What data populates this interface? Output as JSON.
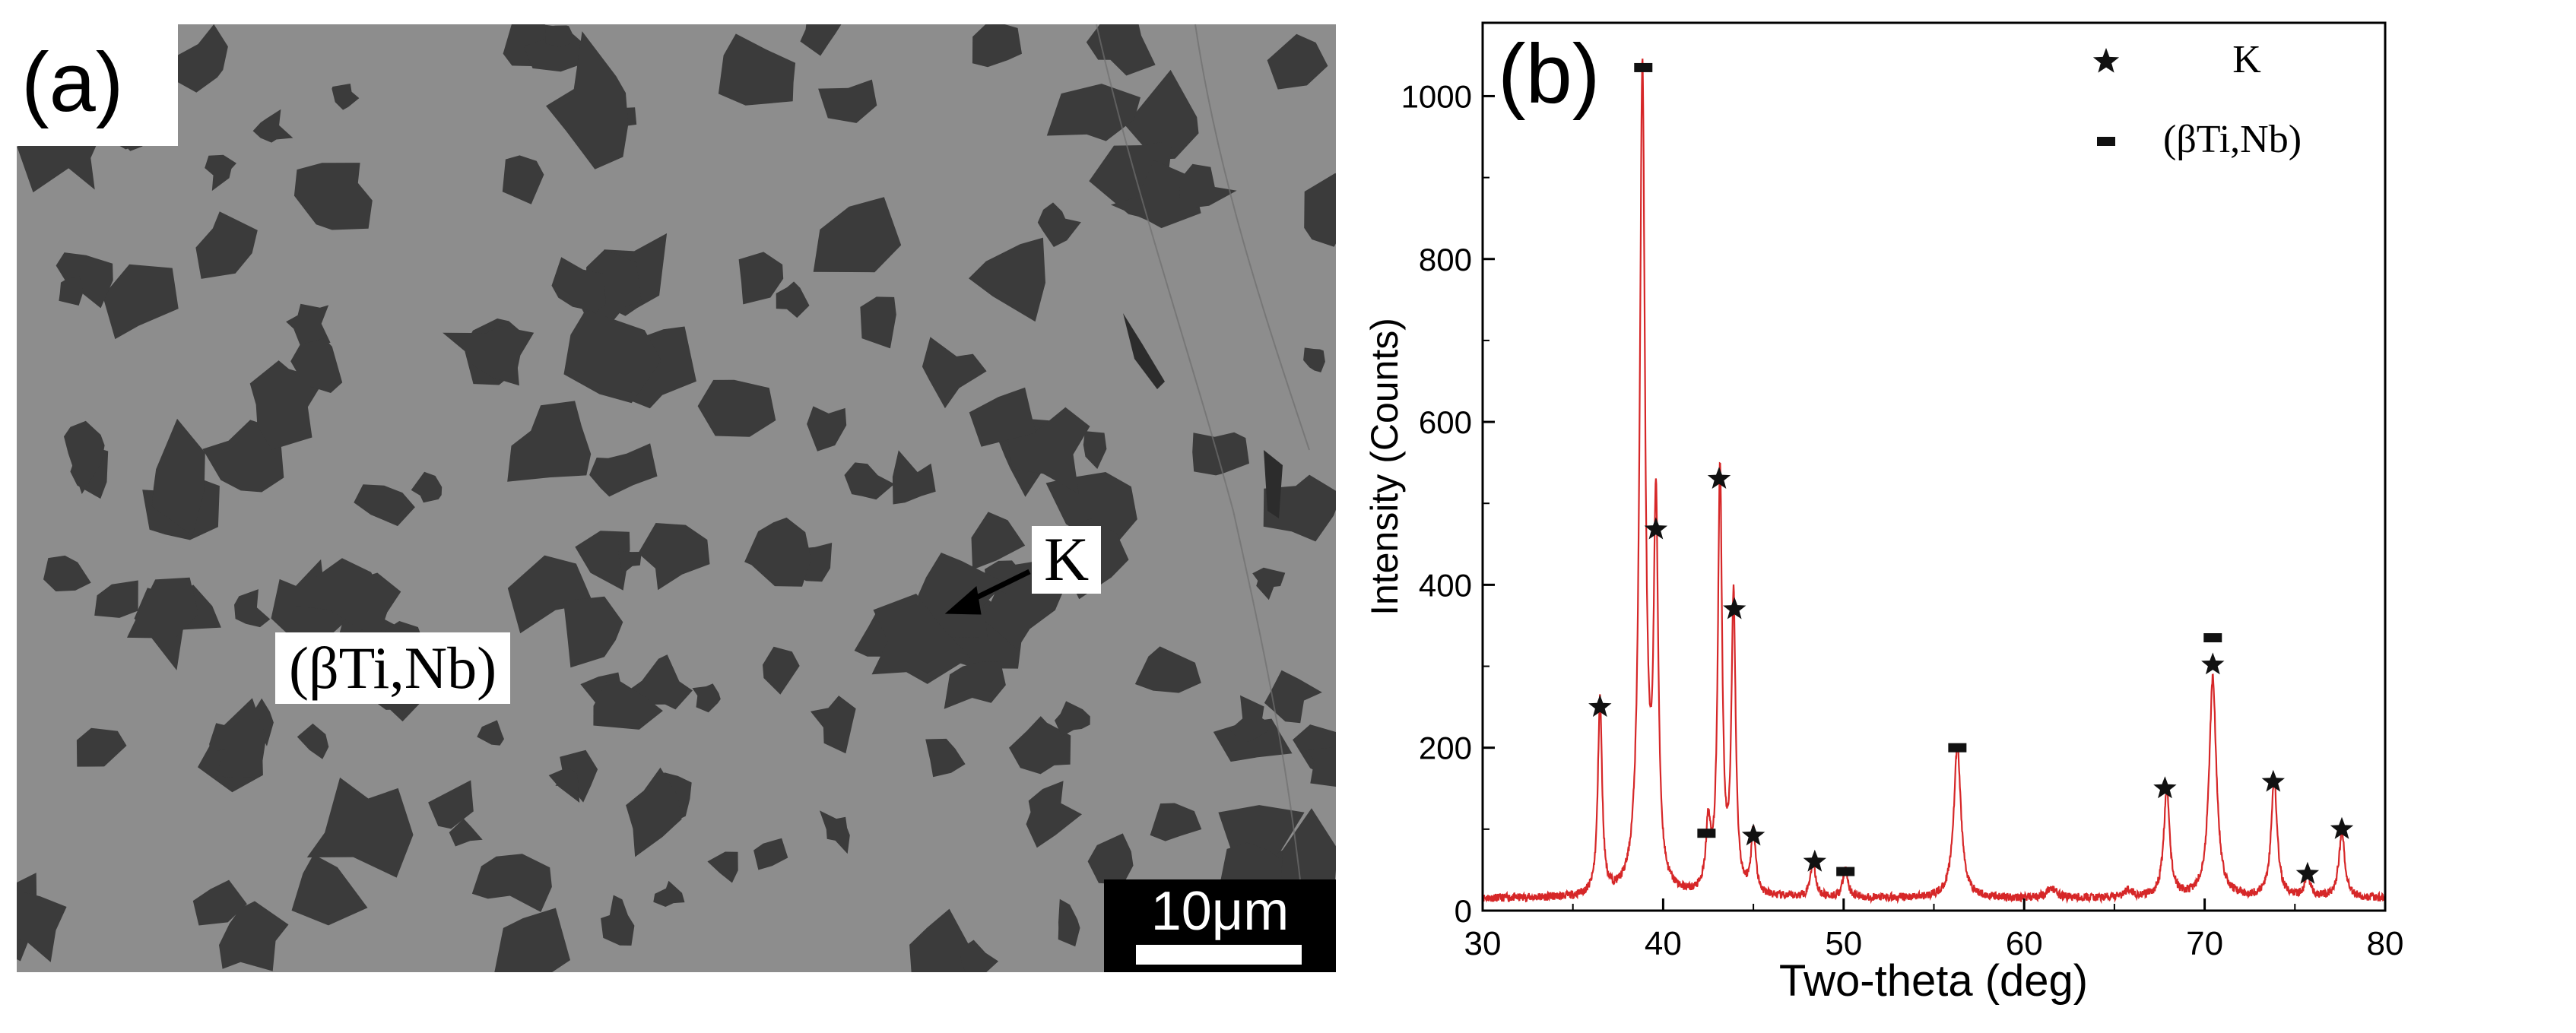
{
  "panel_a": {
    "label": "(a)",
    "phase_label": "(βTi,Nb)",
    "particle_label": "K",
    "scale_label": "10μm"
  },
  "chart_data": {
    "type": "line",
    "panel_label": "(b)",
    "title": "",
    "xlabel": "Two-theta (deg)",
    "ylabel": "Intensity (Counts)",
    "xlim": [
      30,
      80
    ],
    "ylim": [
      0,
      1090
    ],
    "xticks": [
      30,
      40,
      50,
      60,
      70,
      80
    ],
    "yticks": [
      0,
      200,
      400,
      600,
      800,
      1000
    ],
    "grid": false,
    "legend_position": "top-right",
    "line_color": "#d62728",
    "baseline": 15,
    "peaks": [
      {
        "x": 36.5,
        "y": 240,
        "w": 0.14,
        "phase": "K"
      },
      {
        "x": 38.85,
        "y": 1010,
        "w": 0.18,
        "phase": "(βTi,Nb)"
      },
      {
        "x": 39.6,
        "y": 460,
        "w": 0.15,
        "phase": "K"
      },
      {
        "x": 42.5,
        "y": 80,
        "w": 0.15,
        "phase": "(βTi,Nb)"
      },
      {
        "x": 43.15,
        "y": 520,
        "w": 0.14,
        "phase": "K"
      },
      {
        "x": 43.9,
        "y": 360,
        "w": 0.14,
        "phase": "K"
      },
      {
        "x": 45.0,
        "y": 80,
        "w": 0.15,
        "phase": "K"
      },
      {
        "x": 48.3,
        "y": 45,
        "w": 0.17,
        "phase": "K"
      },
      {
        "x": 50.1,
        "y": 35,
        "w": 0.17,
        "phase": "(βTi,Nb)"
      },
      {
        "x": 56.3,
        "y": 185,
        "w": 0.24,
        "phase": "(βTi,Nb)"
      },
      {
        "x": 61.5,
        "y": 12,
        "w": 0.3,
        "phase": ""
      },
      {
        "x": 65.8,
        "y": 10,
        "w": 0.25,
        "phase": ""
      },
      {
        "x": 67.9,
        "y": 130,
        "w": 0.2,
        "phase": "K"
      },
      {
        "x": 70.45,
        "y": 270,
        "w": 0.24,
        "phase": "K"
      },
      {
        "x": 73.85,
        "y": 145,
        "w": 0.2,
        "phase": "K"
      },
      {
        "x": 75.7,
        "y": 28,
        "w": 0.17,
        "phase": "K"
      },
      {
        "x": 77.6,
        "y": 80,
        "w": 0.2,
        "phase": "K"
      }
    ],
    "markers": [
      {
        "x": 36.5,
        "y": 250,
        "type": "star"
      },
      {
        "x": 38.9,
        "y": 1035,
        "type": "bar"
      },
      {
        "x": 39.6,
        "y": 468,
        "type": "star"
      },
      {
        "x": 42.4,
        "y": 95,
        "type": "bar"
      },
      {
        "x": 43.1,
        "y": 530,
        "type": "star"
      },
      {
        "x": 43.95,
        "y": 370,
        "type": "star"
      },
      {
        "x": 45.0,
        "y": 92,
        "type": "star"
      },
      {
        "x": 48.4,
        "y": 60,
        "type": "star"
      },
      {
        "x": 50.1,
        "y": 48,
        "type": "bar"
      },
      {
        "x": 56.3,
        "y": 200,
        "type": "bar"
      },
      {
        "x": 67.8,
        "y": 150,
        "type": "star"
      },
      {
        "x": 70.45,
        "y": 335,
        "type": "bar"
      },
      {
        "x": 70.45,
        "y": 302,
        "type": "star"
      },
      {
        "x": 73.8,
        "y": 158,
        "type": "star"
      },
      {
        "x": 75.7,
        "y": 45,
        "type": "star"
      },
      {
        "x": 77.6,
        "y": 100,
        "type": "star"
      }
    ],
    "legend": [
      {
        "symbol": "star",
        "label": "K"
      },
      {
        "symbol": "bar",
        "label": "(βTi,Nb)"
      }
    ]
  }
}
